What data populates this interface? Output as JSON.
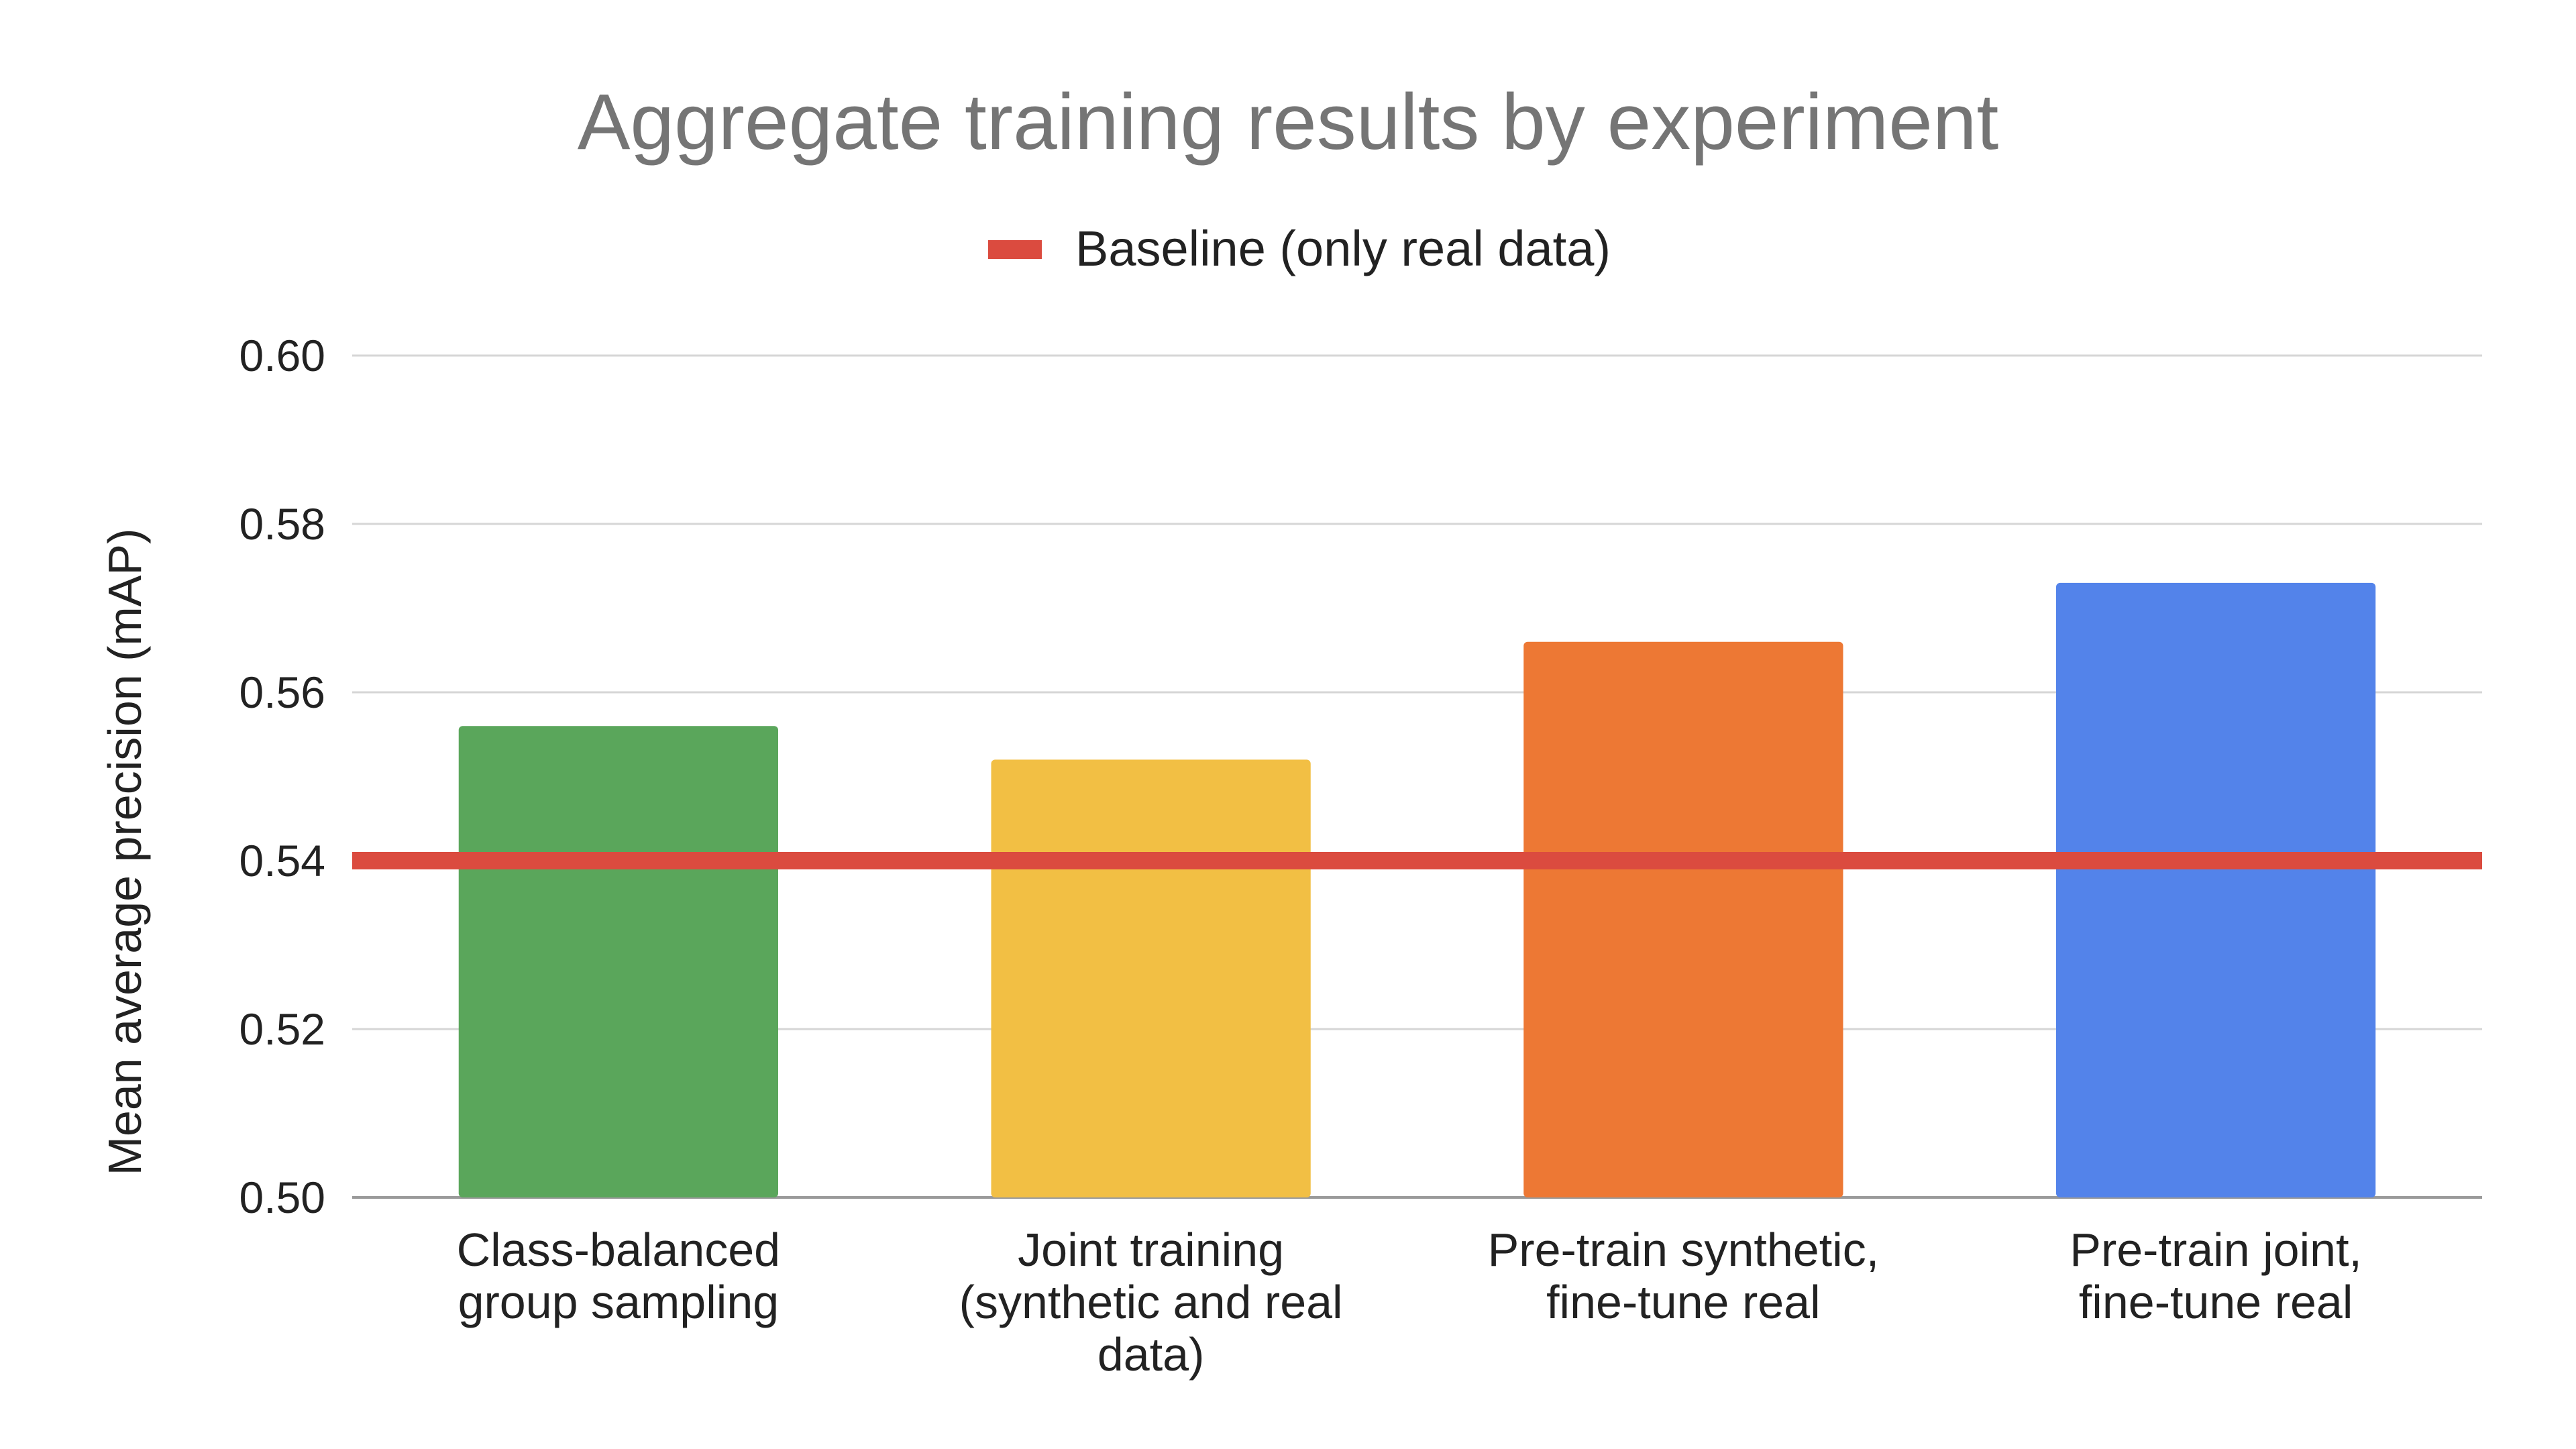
{
  "chart_data": {
    "type": "bar",
    "title": "Aggregate training results by experiment",
    "xlabel": "",
    "ylabel": "Mean average precision (mAP)",
    "ylim": [
      0.5,
      0.6
    ],
    "yticks": [
      0.5,
      0.52,
      0.54,
      0.56,
      0.58,
      0.6
    ],
    "ytick_labels": [
      "0.50",
      "0.52",
      "0.54",
      "0.56",
      "0.58",
      "0.60"
    ],
    "grid": true,
    "categories": [
      "Class-balanced group sampling",
      "Joint training (synthetic and real data)",
      "Pre-train synthetic, fine-tune real",
      "Pre-train joint, fine-tune real"
    ],
    "category_label_lines": [
      [
        "Class-balanced",
        "group sampling"
      ],
      [
        "Joint training",
        "(synthetic and real",
        "data)"
      ],
      [
        "Pre-train synthetic,",
        "fine-tune real"
      ],
      [
        "Pre-train joint,",
        "fine-tune real"
      ]
    ],
    "values": [
      0.556,
      0.552,
      0.566,
      0.573
    ],
    "bar_colors": [
      "#5aa65b",
      "#f2bf44",
      "#ed7834",
      "#5383ea"
    ],
    "baseline": {
      "name": "Baseline (only real data)",
      "value": 0.54,
      "color": "#db4b3f"
    },
    "legend": {
      "placement": "top-center",
      "entries": [
        "Baseline (only real data)"
      ]
    }
  }
}
